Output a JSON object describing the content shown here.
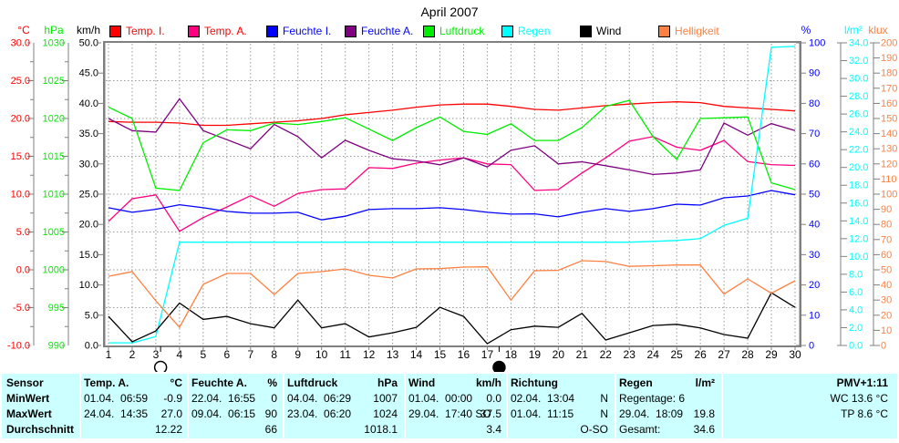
{
  "chart_data": {
    "type": "line",
    "title": "April 2007",
    "x": [
      1,
      2,
      3,
      4,
      5,
      6,
      7,
      8,
      9,
      10,
      11,
      12,
      13,
      14,
      15,
      16,
      17,
      18,
      19,
      20,
      21,
      22,
      23,
      24,
      25,
      26,
      27,
      28,
      29,
      30
    ],
    "x_tick_labels": [
      "1",
      "2",
      "3",
      "4",
      "5",
      "6",
      "7",
      "8",
      "9",
      "10",
      "11",
      "12",
      "13",
      "14",
      "15",
      "16",
      "17",
      "18",
      "19",
      "20",
      "21",
      "22",
      "23",
      "24",
      "25",
      "26",
      "27",
      "28",
      "29",
      "30"
    ],
    "grid": true,
    "legend_position": "top",
    "axes": {
      "left": [
        {
          "id": "celsius",
          "unit": "°C",
          "color": "#ff0000",
          "min": -10,
          "max": 30,
          "minor_ticks": true,
          "tick_labels": [
            "30.0",
            "25.0",
            "20.0",
            "15.0",
            "10.0",
            "5.0",
            "0.0",
            "-5.0",
            "-10.0"
          ]
        },
        {
          "id": "hpa",
          "unit": "hPa",
          "color": "#00ee00",
          "min": 990,
          "max": 1030,
          "minor_ticks": true,
          "tick_labels": [
            "1030",
            "1025",
            "1020",
            "1015",
            "1010",
            "1005",
            "1000",
            "995",
            "990"
          ]
        },
        {
          "id": "kmh",
          "unit": "km/h",
          "color": "#000000",
          "min": 0,
          "max": 50,
          "minor_ticks": false,
          "tick_labels": [
            "50.0",
            "45.0",
            "40.0",
            "35.0",
            "30.0",
            "25.0",
            "20.0",
            "15.0",
            "10.0",
            "5.0",
            "0.0"
          ]
        }
      ],
      "right": [
        {
          "id": "percent",
          "unit": "%",
          "color": "#0000ff",
          "min": 0,
          "max": 100,
          "minor_ticks": false,
          "tick_labels": [
            "100",
            "90",
            "80",
            "70",
            "60",
            "50",
            "40",
            "30",
            "20",
            "10",
            "0"
          ]
        },
        {
          "id": "lm2",
          "unit": "l/m²",
          "color": "#00ffff",
          "min": 0,
          "max": 34,
          "minor_ticks": false,
          "tick_labels": [
            "34.0",
            "32.0",
            "30.0",
            "28.0",
            "26.0",
            "24.0",
            "22.0",
            "20.0",
            "18.0",
            "16.0",
            "14.0",
            "12.0",
            "10.0",
            "8.0",
            "6.0",
            "4.0",
            "2.0",
            "0.0"
          ]
        },
        {
          "id": "klux",
          "unit": "klux",
          "color": "#ff8040",
          "min": 0,
          "max": 200,
          "minor_ticks": false,
          "tick_labels": [
            "200",
            "190",
            "180",
            "170",
            "160",
            "150",
            "140",
            "130",
            "120",
            "110",
            "100",
            "90",
            "80",
            "70",
            "60",
            "50",
            "40",
            "30",
            "20",
            "10",
            "0"
          ]
        }
      ]
    },
    "series": [
      {
        "name": "Temp. I.",
        "axis": "celsius",
        "unit": "°C",
        "color": "#ff0000",
        "label_color": "#ff0000",
        "values": [
          19.6,
          19.5,
          19.5,
          19.4,
          19.1,
          19.1,
          19.3,
          19.5,
          19.7,
          20.0,
          20.5,
          20.8,
          21.1,
          21.5,
          21.8,
          21.9,
          21.9,
          21.6,
          21.2,
          21.1,
          21.4,
          21.7,
          21.9,
          22.1,
          22.2,
          22.1,
          21.6,
          21.4,
          21.2,
          21.0
        ]
      },
      {
        "name": "Temp. A.",
        "axis": "celsius",
        "unit": "°C",
        "color": "#ff0080",
        "label_color": "#ff0000",
        "values": [
          6.4,
          9.4,
          9.9,
          5.1,
          6.9,
          8.3,
          9.8,
          8.4,
          10.1,
          10.6,
          10.7,
          13.5,
          13.4,
          14.1,
          14.5,
          14.8,
          14.0,
          13.9,
          10.5,
          10.6,
          12.8,
          14.8,
          17.0,
          17.6,
          16.2,
          15.8,
          17.1,
          14.3,
          13.9,
          13.8
        ]
      },
      {
        "name": "Feuchte I.",
        "axis": "percent",
        "unit": "%",
        "color": "#0000ff",
        "label_color": "#0000ff",
        "values": [
          45.5,
          44.0,
          45.0,
          46.5,
          45.5,
          44.3,
          43.7,
          43.7,
          44.0,
          41.5,
          42.7,
          44.9,
          45.2,
          45.2,
          45.5,
          44.9,
          44.0,
          43.4,
          43.5,
          42.5,
          44.0,
          45.2,
          44.3,
          45.2,
          46.7,
          46.4,
          48.8,
          49.4,
          51.2,
          49.8
        ]
      },
      {
        "name": "Feuchte A.",
        "axis": "percent",
        "unit": "%",
        "color": "#800080",
        "label_color": "#0000ff",
        "values": [
          75.0,
          71.0,
          70.5,
          81.5,
          71.0,
          68.0,
          65.0,
          73.0,
          69.0,
          62.0,
          67.8,
          64.5,
          61.7,
          61.0,
          59.7,
          62.0,
          59.0,
          64.5,
          66.0,
          60.0,
          60.7,
          59.4,
          58.0,
          56.5,
          57.0,
          58.0,
          73.5,
          69.5,
          73.3,
          71.0
        ]
      },
      {
        "name": "Luftdruck",
        "axis": "hpa",
        "unit": "hPa",
        "color": "#00ee00",
        "label_color": "#00ee00",
        "values": [
          1021.5,
          1020.0,
          1010.8,
          1010.5,
          1016.8,
          1018.5,
          1018.4,
          1019.4,
          1019.2,
          1019.6,
          1020.1,
          1018.6,
          1017.1,
          1018.8,
          1020.2,
          1018.3,
          1017.9,
          1019.3,
          1017.1,
          1017.1,
          1018.8,
          1021.6,
          1022.4,
          1017.6,
          1014.6,
          1020.0,
          1020.1,
          1020.2,
          1011.5,
          1010.6
        ]
      },
      {
        "name": "Regen",
        "axis": "lm2",
        "unit": "l/m²",
        "color": "#00ffff",
        "label_color": "#00ffff",
        "values": [
          0.3,
          0.3,
          1.0,
          11.6,
          11.6,
          11.6,
          11.6,
          11.6,
          11.6,
          11.6,
          11.6,
          11.6,
          11.6,
          11.6,
          11.6,
          11.6,
          11.6,
          11.6,
          11.6,
          11.6,
          11.6,
          11.6,
          11.6,
          11.7,
          11.8,
          12.0,
          13.5,
          14.3,
          33.5,
          33.6
        ]
      },
      {
        "name": "Wind",
        "axis": "kmh",
        "unit": "km/h",
        "color": "#000000",
        "label_color": "#000000",
        "values": [
          4.8,
          0.6,
          2.4,
          7.0,
          4.3,
          4.8,
          3.6,
          2.9,
          7.5,
          2.9,
          3.6,
          1.4,
          2.1,
          3.0,
          6.3,
          4.8,
          0.3,
          2.6,
          3.2,
          3.0,
          5.3,
          0.9,
          2.1,
          3.3,
          3.5,
          2.9,
          1.8,
          1.2,
          8.7,
          6.3
        ]
      },
      {
        "name": "Helligkeit",
        "axis": "klux",
        "unit": "klux",
        "color": "#ff8040",
        "label_color": "#ff8040",
        "values": [
          45.7,
          48.8,
          29.5,
          12.0,
          40.4,
          47.6,
          47.6,
          33.7,
          47.6,
          48.8,
          50.6,
          46.4,
          44.6,
          50.6,
          50.8,
          51.8,
          52.0,
          30.0,
          49.4,
          49.7,
          56.0,
          55.5,
          52.3,
          52.7,
          53.2,
          53.2,
          34.0,
          44.0,
          34.5,
          42.8
        ]
      }
    ],
    "markers": [
      {
        "type": "moon-open",
        "day": 3.2
      },
      {
        "type": "moon-filled",
        "day": 17.5
      }
    ]
  },
  "table": {
    "bg_color": "#ccffff",
    "row_labels": [
      "Sensor",
      "MinWert",
      "MaxWert",
      "Durchschnitt"
    ],
    "columns": [
      {
        "header": "Temp. A.",
        "unit": "°C",
        "align": "left",
        "cells": [
          {
            "text": "01.04.  06:59",
            "value": "-0.9"
          },
          {
            "text": "24.04.  14:35",
            "value": "27.0"
          },
          {
            "text": "",
            "value": "12.22"
          }
        ]
      },
      {
        "header": "Feuchte A.",
        "unit": "%",
        "align": "left",
        "cells": [
          {
            "text": "22.04.  16:55",
            "value": "0"
          },
          {
            "text": "09.04.  06:15",
            "value": "90"
          },
          {
            "text": "",
            "value": "66"
          }
        ]
      },
      {
        "header": "Luftdruck",
        "unit": "hPa",
        "align": "left",
        "cells": [
          {
            "text": "04.04.  06:29",
            "value": "1007"
          },
          {
            "text": "23.04.  06:20",
            "value": "1024"
          },
          {
            "text": "",
            "value": "1018.1"
          }
        ]
      },
      {
        "header": "Wind",
        "unit": "km/h",
        "align": "left",
        "cells": [
          {
            "text": "01.04.  00:00",
            "value": "0.0"
          },
          {
            "text": "29.04.  17:40 SO",
            "value": "37.5"
          },
          {
            "text": "",
            "value": "3.4"
          }
        ]
      },
      {
        "header": "Richtung",
        "unit": "",
        "align": "left",
        "cells": [
          {
            "text": "02.04.  13:04",
            "value": "N"
          },
          {
            "text": "01.04.  11:15",
            "value": "N"
          },
          {
            "text": "",
            "value": "O-SO"
          }
        ]
      },
      {
        "header": "Regen",
        "unit": "l/m²",
        "align": "left",
        "cells": [
          {
            "text": "Regentage: 6",
            "value": ""
          },
          {
            "text": "29.04.  18:09",
            "value": "19.8"
          },
          {
            "text": "Gesamt:",
            "value": "34.6"
          }
        ]
      },
      {
        "header": "PMV+1:11",
        "unit": "",
        "align": "right",
        "cells": [
          {
            "text": "",
            "value": "WC 13.6 °C"
          },
          {
            "text": "",
            "value": "TP 8.6 °C"
          },
          {
            "text": "",
            "value": ""
          }
        ]
      }
    ]
  }
}
